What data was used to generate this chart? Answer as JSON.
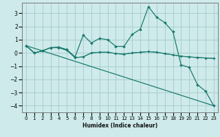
{
  "title": "",
  "xlabel": "Humidex (Indice chaleur)",
  "ylabel": "",
  "background_color": "#ceeaea",
  "grid_color": "#aacece",
  "line_color": "#1a7a6e",
  "xlim": [
    -0.5,
    23.5
  ],
  "ylim": [
    -4.5,
    3.8
  ],
  "yticks": [
    -4,
    -3,
    -2,
    -1,
    0,
    1,
    2,
    3
  ],
  "xticks": [
    0,
    1,
    2,
    3,
    4,
    5,
    6,
    7,
    8,
    9,
    10,
    11,
    12,
    13,
    14,
    15,
    16,
    17,
    18,
    19,
    20,
    21,
    22,
    23
  ],
  "series": [
    {
      "x": [
        0,
        1,
        2,
        3,
        4,
        5,
        6,
        7,
        8,
        9,
        10,
        11,
        12,
        13,
        14,
        15,
        16,
        17,
        18,
        19,
        20,
        21,
        22,
        23
      ],
      "y": [
        0.55,
        0.0,
        0.15,
        0.4,
        0.45,
        0.25,
        -0.3,
        1.35,
        0.75,
        1.1,
        1.0,
        0.5,
        0.5,
        1.4,
        1.8,
        3.5,
        2.7,
        2.3,
        1.6,
        -0.9,
        -1.1,
        -2.4,
        -2.9,
        -4.0
      ],
      "marker": true
    },
    {
      "x": [
        0,
        1,
        2,
        3,
        4,
        5,
        6,
        7,
        8,
        9,
        10,
        11,
        12,
        13,
        14,
        15,
        16,
        17,
        18,
        19,
        20,
        21,
        22,
        23
      ],
      "y": [
        0.55,
        0.0,
        0.15,
        0.4,
        0.4,
        0.2,
        -0.35,
        -0.3,
        0.0,
        0.05,
        0.05,
        -0.05,
        -0.1,
        0.0,
        0.05,
        0.1,
        0.05,
        -0.05,
        -0.15,
        -0.25,
        -0.3,
        -0.35,
        -0.38,
        -0.42
      ],
      "marker": true
    },
    {
      "x": [
        0,
        1,
        2,
        3,
        4,
        5,
        6,
        7,
        8,
        9,
        10,
        11,
        12,
        13,
        14,
        15,
        16,
        17,
        18,
        19,
        20,
        21,
        22,
        23
      ],
      "y": [
        0.55,
        0.0,
        0.15,
        0.4,
        0.4,
        0.2,
        -0.35,
        -0.3,
        0.0,
        0.05,
        0.05,
        -0.05,
        -0.1,
        0.0,
        0.05,
        0.1,
        0.05,
        -0.05,
        -0.15,
        -0.25,
        -0.3,
        -0.35,
        -0.38,
        -0.42
      ],
      "marker": false
    },
    {
      "x": [
        0,
        23
      ],
      "y": [
        0.55,
        -4.0
      ],
      "marker": false
    }
  ]
}
